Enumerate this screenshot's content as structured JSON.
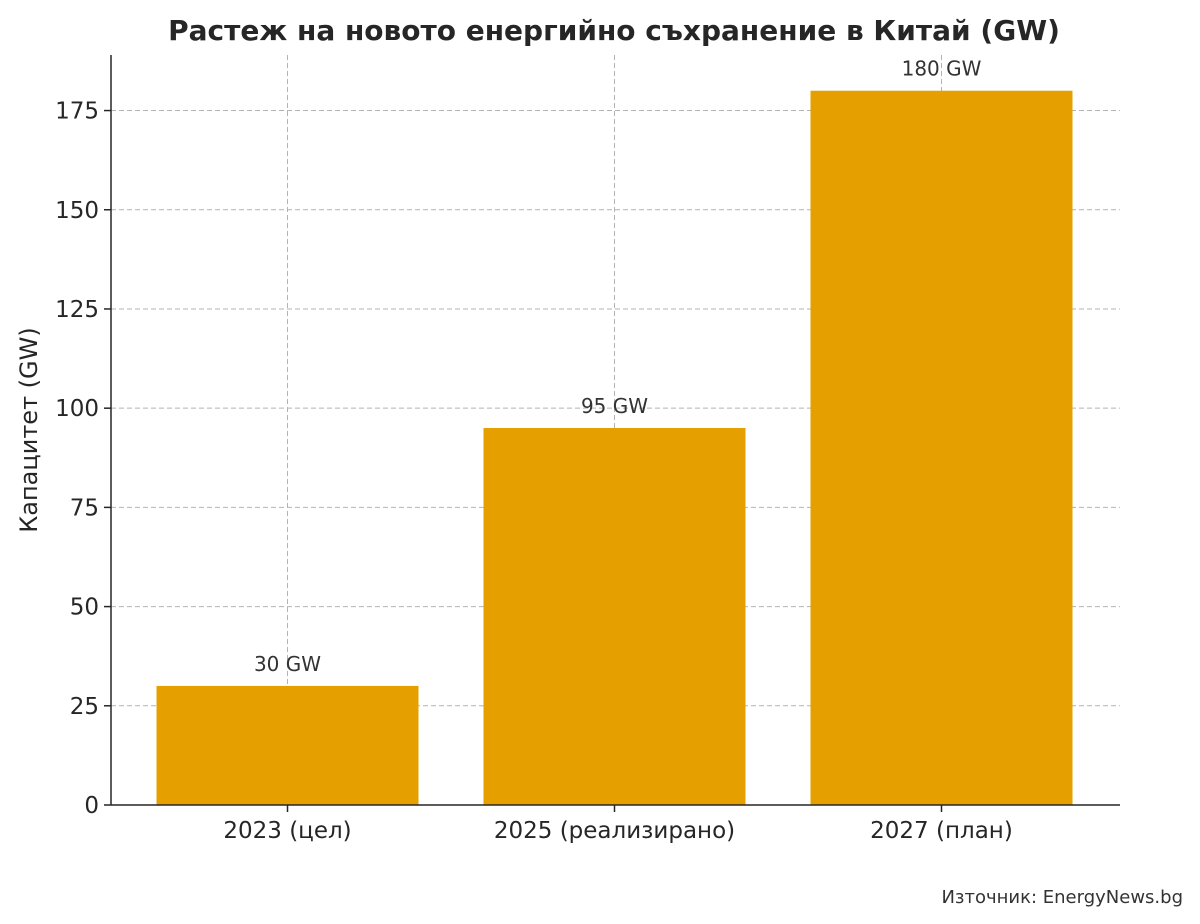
{
  "chart_data": {
    "type": "bar",
    "title": "Растеж на новото енергийно съхранение в Китай (GW)",
    "xlabel": "",
    "ylabel": "Капацитет (GW)",
    "categories": [
      "2023 (цел)",
      "2025 (реализирано)",
      "2027 (план)"
    ],
    "values": [
      30,
      95,
      180
    ],
    "data_labels": [
      "30 GW",
      "95 GW",
      "180 GW"
    ],
    "ylim": [
      0,
      189
    ],
    "yticks": [
      0,
      25,
      50,
      75,
      100,
      125,
      150,
      175
    ],
    "grid": true,
    "bar_color": "#e5a000"
  },
  "source": "Източник: EnergyNews.bg"
}
